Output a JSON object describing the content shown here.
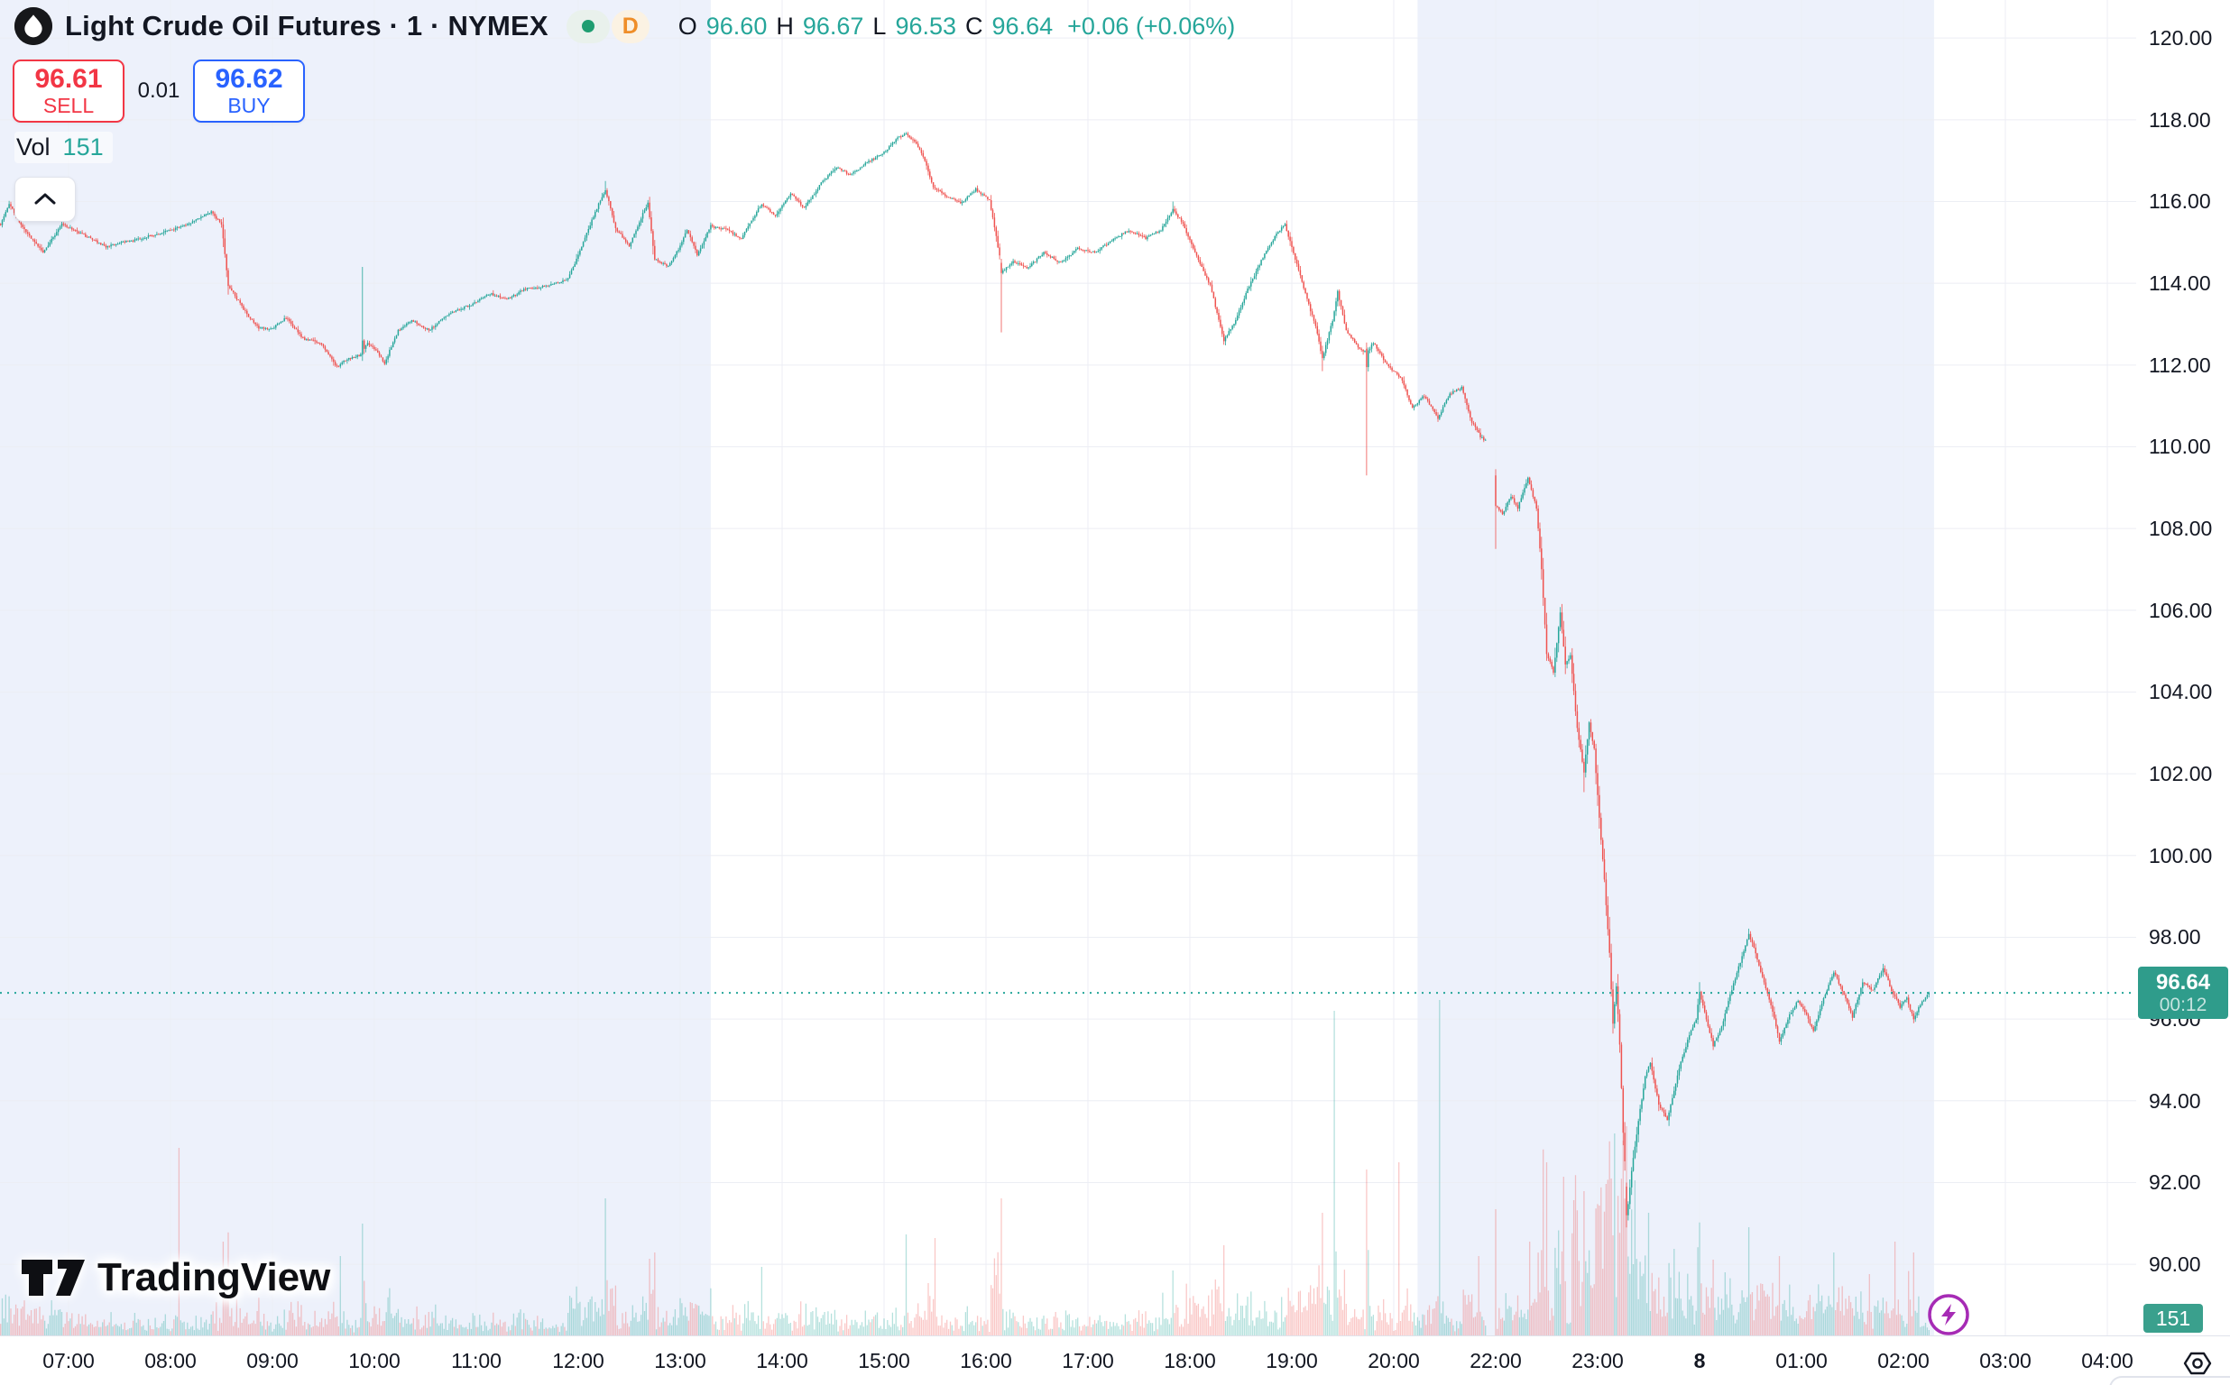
{
  "header": {
    "title": "Light Crude Oil Futures · 1 · NYMEX",
    "timeframe_badge": "D",
    "ohlc": {
      "o_label": "O",
      "o": "96.60",
      "h_label": "H",
      "h": "96.67",
      "l_label": "L",
      "l": "96.53",
      "c_label": "C",
      "c": "96.64",
      "change": "+0.06 (+0.06%)"
    }
  },
  "order_panel": {
    "sell_price": "96.61",
    "sell_label": "SELL",
    "spread": "0.01",
    "buy_price": "96.62",
    "buy_label": "BUY"
  },
  "indicator": {
    "label": "Vol",
    "value": "151"
  },
  "watermark": "TradingView",
  "price_scale": {
    "ticks": [
      "120.00",
      "118.00",
      "116.00",
      "114.00",
      "112.00",
      "110.00",
      "108.00",
      "106.00",
      "104.00",
      "102.00",
      "100.00",
      "98.00",
      "96.00",
      "94.00",
      "92.00",
      "90.00"
    ],
    "last_price_label": "96.64",
    "countdown": "00:12",
    "volume_badge": "151"
  },
  "time_scale": {
    "ticks": [
      {
        "text": "07:00",
        "slot": 0
      },
      {
        "text": "08:00",
        "slot": 1
      },
      {
        "text": "09:00",
        "slot": 2
      },
      {
        "text": "10:00",
        "slot": 3
      },
      {
        "text": "11:00",
        "slot": 4
      },
      {
        "text": "12:00",
        "slot": 5
      },
      {
        "text": "13:00",
        "slot": 6
      },
      {
        "text": "14:00",
        "slot": 7
      },
      {
        "text": "15:00",
        "slot": 8
      },
      {
        "text": "16:00",
        "slot": 9
      },
      {
        "text": "17:00",
        "slot": 10
      },
      {
        "text": "18:00",
        "slot": 11
      },
      {
        "text": "19:00",
        "slot": 12
      },
      {
        "text": "20:00",
        "slot": 13
      },
      {
        "text": "22:00",
        "slot": 14
      },
      {
        "text": "23:00",
        "slot": 15
      },
      {
        "text": "8",
        "slot": 16,
        "bold": true
      },
      {
        "text": "01:00",
        "slot": 17
      },
      {
        "text": "02:00",
        "slot": 18
      },
      {
        "text": "03:00",
        "slot": 19
      },
      {
        "text": "04:00",
        "slot": 20
      }
    ]
  },
  "colors": {
    "up": "#26a69a",
    "down": "#ef5350",
    "vol_up": "rgba(38,166,154,0.34)",
    "vol_down": "rgba(239,83,80,0.32)",
    "badge": "#2f9c8b",
    "buy": "#2962ff",
    "sell": "#f23645",
    "session_band": "#edf1fb",
    "grid": "#eceef4",
    "price_line": "#26a69a"
  },
  "chart_data": {
    "type": "candlestick",
    "symbol": "Light Crude Oil Futures",
    "exchange": "NYMEX",
    "interval": "1 minute",
    "price_axis": {
      "min": 88.26,
      "max": 120.93,
      "tick_step": 2
    },
    "visible_range": {
      "start": "06:20",
      "end": "02:15",
      "trading_break": [
        "20:54",
        "22:00"
      ]
    },
    "session_bands": [
      [
        "06:17",
        "13:18"
      ],
      [
        "20:14",
        "02:18"
      ]
    ],
    "session_high": 117.7,
    "session_high_time": "15:13",
    "session_low": 90.9,
    "session_low_time": "23:17",
    "last": {
      "price": 96.64,
      "time": "02:15",
      "countdown": "00:12",
      "bar_volume": 151
    },
    "price_path": [
      [
        "06:20",
        115.45
      ],
      [
        "06:25",
        115.95
      ],
      [
        "06:33",
        115.35
      ],
      [
        "06:45",
        114.75
      ],
      [
        "06:56",
        115.45
      ],
      [
        "07:08",
        115.2
      ],
      [
        "07:22",
        114.9
      ],
      [
        "07:38",
        115.05
      ],
      [
        "07:52",
        115.2
      ],
      [
        "08:08",
        115.4
      ],
      [
        "08:24",
        115.75
      ],
      [
        "08:30",
        115.45
      ],
      [
        "08:34",
        113.95
      ],
      [
        "08:44",
        113.3
      ],
      [
        "08:52",
        112.9
      ],
      [
        "09:00",
        112.9
      ],
      [
        "09:08",
        113.15
      ],
      [
        "09:18",
        112.65
      ],
      [
        "09:28",
        112.55
      ],
      [
        "09:38",
        111.95
      ],
      [
        "09:44",
        112.15
      ],
      [
        "09:52",
        112.25
      ],
      [
        "09:56",
        112.55
      ],
      [
        "10:02",
        112.3
      ],
      [
        "10:06",
        112.05
      ],
      [
        "10:14",
        112.85
      ],
      [
        "10:22",
        113.1
      ],
      [
        "10:32",
        112.85
      ],
      [
        "10:44",
        113.25
      ],
      [
        "10:58",
        113.5
      ],
      [
        "11:08",
        113.75
      ],
      [
        "11:18",
        113.6
      ],
      [
        "11:28",
        113.85
      ],
      [
        "11:42",
        113.95
      ],
      [
        "11:54",
        114.1
      ],
      [
        "12:03",
        115.0
      ],
      [
        "12:10",
        115.75
      ],
      [
        "12:16",
        116.3
      ],
      [
        "12:22",
        115.35
      ],
      [
        "12:30",
        114.9
      ],
      [
        "12:38",
        115.7
      ],
      [
        "12:41",
        115.95
      ],
      [
        "12:45",
        114.6
      ],
      [
        "12:53",
        114.4
      ],
      [
        "13:00",
        114.9
      ],
      [
        "13:04",
        115.3
      ],
      [
        "13:10",
        114.7
      ],
      [
        "13:18",
        115.4
      ],
      [
        "13:28",
        115.3
      ],
      [
        "13:36",
        115.1
      ],
      [
        "13:48",
        115.95
      ],
      [
        "13:56",
        115.65
      ],
      [
        "14:05",
        116.2
      ],
      [
        "14:13",
        115.85
      ],
      [
        "14:24",
        116.5
      ],
      [
        "14:32",
        116.85
      ],
      [
        "14:40",
        116.65
      ],
      [
        "14:50",
        116.95
      ],
      [
        "15:00",
        117.2
      ],
      [
        "15:08",
        117.55
      ],
      [
        "15:13",
        117.65
      ],
      [
        "15:19",
        117.4
      ],
      [
        "15:24",
        117.0
      ],
      [
        "15:29",
        116.35
      ],
      [
        "15:36",
        116.15
      ],
      [
        "15:45",
        115.95
      ],
      [
        "15:54",
        116.3
      ],
      [
        "16:02",
        116.05
      ],
      [
        "16:07",
        114.9
      ],
      [
        "16:10",
        114.3
      ],
      [
        "16:16",
        114.55
      ],
      [
        "16:24",
        114.35
      ],
      [
        "16:34",
        114.75
      ],
      [
        "16:44",
        114.5
      ],
      [
        "16:54",
        114.85
      ],
      [
        "17:04",
        114.75
      ],
      [
        "17:14",
        115.05
      ],
      [
        "17:24",
        115.3
      ],
      [
        "17:34",
        115.1
      ],
      [
        "17:43",
        115.3
      ],
      [
        "17:50",
        115.8
      ],
      [
        "17:56",
        115.45
      ],
      [
        "18:04",
        114.65
      ],
      [
        "18:12",
        113.95
      ],
      [
        "18:20",
        112.6
      ],
      [
        "18:27",
        113.1
      ],
      [
        "18:34",
        113.85
      ],
      [
        "18:42",
        114.55
      ],
      [
        "18:50",
        115.15
      ],
      [
        "18:56",
        115.45
      ],
      [
        "19:02",
        114.6
      ],
      [
        "19:09",
        113.6
      ],
      [
        "19:14",
        112.95
      ],
      [
        "19:18",
        112.15
      ],
      [
        "19:24",
        113.1
      ],
      [
        "19:27",
        113.8
      ],
      [
        "19:32",
        112.85
      ],
      [
        "19:40",
        112.4
      ],
      [
        "19:44",
        112.3
      ],
      [
        "19:48",
        112.55
      ],
      [
        "19:56",
        112.0
      ],
      [
        "20:04",
        111.7
      ],
      [
        "20:11",
        110.95
      ],
      [
        "20:18",
        111.25
      ],
      [
        "20:26",
        110.7
      ],
      [
        "20:33",
        111.3
      ],
      [
        "20:40",
        111.45
      ],
      [
        "20:46",
        110.6
      ],
      [
        "20:51",
        110.25
      ],
      [
        "20:54",
        110.15
      ],
      [
        "22:00",
        108.6
      ],
      [
        "22:04",
        108.35
      ],
      [
        "22:09",
        108.8
      ],
      [
        "22:13",
        108.5
      ],
      [
        "22:19",
        109.25
      ],
      [
        "22:24",
        108.5
      ],
      [
        "22:27",
        107.0
      ],
      [
        "22:30",
        104.95
      ],
      [
        "22:34",
        104.5
      ],
      [
        "22:38",
        105.95
      ],
      [
        "22:41",
        104.7
      ],
      [
        "22:44",
        104.9
      ],
      [
        "22:48",
        103.1
      ],
      [
        "22:52",
        102.05
      ],
      [
        "22:55",
        103.25
      ],
      [
        "22:58",
        102.6
      ],
      [
        "23:01",
        100.9
      ],
      [
        "23:04",
        99.4
      ],
      [
        "23:07",
        97.6
      ],
      [
        "23:09",
        95.9
      ],
      [
        "23:11",
        96.8
      ],
      [
        "23:13",
        95.4
      ],
      [
        "23:15",
        93.2
      ],
      [
        "23:16",
        92.5
      ],
      [
        "23:17",
        91.1
      ],
      [
        "23:20",
        92.3
      ],
      [
        "23:24",
        93.5
      ],
      [
        "23:28",
        94.6
      ],
      [
        "23:31",
        94.95
      ],
      [
        "23:36",
        93.9
      ],
      [
        "23:41",
        93.55
      ],
      [
        "23:48",
        94.8
      ],
      [
        "23:54",
        95.6
      ],
      [
        "23:58",
        96.0
      ],
      [
        "00:00",
        96.65
      ],
      [
        "00:04",
        96.0
      ],
      [
        "00:08",
        95.35
      ],
      [
        "00:13",
        95.8
      ],
      [
        "00:18",
        96.6
      ],
      [
        "00:24",
        97.4
      ],
      [
        "00:29",
        98.1
      ],
      [
        "00:33",
        97.6
      ],
      [
        "00:38",
        96.9
      ],
      [
        "00:43",
        96.2
      ],
      [
        "00:47",
        95.45
      ],
      [
        "00:53",
        96.1
      ],
      [
        "00:58",
        96.45
      ],
      [
        "01:03",
        96.1
      ],
      [
        "01:07",
        95.7
      ],
      [
        "01:13",
        96.5
      ],
      [
        "01:19",
        97.15
      ],
      [
        "01:25",
        96.6
      ],
      [
        "01:30",
        96.05
      ],
      [
        "01:36",
        96.9
      ],
      [
        "01:42",
        96.7
      ],
      [
        "01:48",
        97.25
      ],
      [
        "01:53",
        96.7
      ],
      [
        "01:58",
        96.3
      ],
      [
        "02:02",
        96.5
      ],
      [
        "02:06",
        96.0
      ],
      [
        "02:10",
        96.35
      ],
      [
        "02:15",
        96.64
      ]
    ],
    "special_bars": [
      {
        "t": "09:53",
        "o": 112.25,
        "h": 114.4,
        "l": 112.1,
        "c": 112.6
      },
      {
        "t": "12:16",
        "h": 116.5
      },
      {
        "t": "15:13",
        "h": 117.7
      },
      {
        "t": "16:09",
        "o": 114.5,
        "h": 114.6,
        "l": 112.8,
        "c": 114.25
      },
      {
        "t": "17:50",
        "h": 116.0
      },
      {
        "t": "19:18",
        "l": 111.85
      },
      {
        "t": "19:44",
        "o": 112.4,
        "h": 112.55,
        "l": 109.3,
        "c": 111.95
      },
      {
        "t": "22:00",
        "o": 109.3,
        "h": 109.45,
        "l": 107.5,
        "c": 108.55
      },
      {
        "t": "22:52",
        "l": 101.55
      },
      {
        "t": "23:17",
        "o": 91.9,
        "h": 92.0,
        "l": 90.9,
        "c": 91.2
      },
      {
        "t": "00:00",
        "h": 96.9
      },
      {
        "t": "01:48",
        "h": 97.35
      },
      {
        "t": "02:06",
        "l": 95.9
      },
      {
        "t": "02:15",
        "o": 96.6,
        "h": 96.67,
        "l": 96.53,
        "c": 96.64
      }
    ],
    "volume_spikes": [
      [
        "08:05",
        5200
      ],
      [
        "08:31",
        2600
      ],
      [
        "09:40",
        2200
      ],
      [
        "09:53",
        3100
      ],
      [
        "12:16",
        3800
      ],
      [
        "12:45",
        2300
      ],
      [
        "13:48",
        1900
      ],
      [
        "15:13",
        2800
      ],
      [
        "15:30",
        2700
      ],
      [
        "16:09",
        3800
      ],
      [
        "17:50",
        1800
      ],
      [
        "18:20",
        2500
      ],
      [
        "19:18",
        3400
      ],
      [
        "19:25",
        9000
      ],
      [
        "19:44",
        4600
      ],
      [
        "20:03",
        4800
      ],
      [
        "20:27",
        9300
      ],
      [
        "20:50",
        2200
      ],
      [
        "22:00",
        3500
      ],
      [
        "22:20",
        2600
      ],
      [
        "22:30",
        4800
      ],
      [
        "22:40",
        4400
      ],
      [
        "22:52",
        4000
      ],
      [
        "23:01",
        3600
      ],
      [
        "23:05",
        4200
      ],
      [
        "23:10",
        5600
      ],
      [
        "23:15",
        5400
      ],
      [
        "23:17",
        5800
      ],
      [
        "23:22",
        4300
      ],
      [
        "23:30",
        3400
      ],
      [
        "23:45",
        2400
      ],
      [
        "00:08",
        2100
      ],
      [
        "00:29",
        3000
      ],
      [
        "00:47",
        2200
      ],
      [
        "01:19",
        2300
      ],
      [
        "01:40",
        1700
      ],
      [
        "01:55",
        2600
      ],
      [
        "02:06",
        2300
      ],
      [
        "02:15",
        151
      ]
    ]
  }
}
